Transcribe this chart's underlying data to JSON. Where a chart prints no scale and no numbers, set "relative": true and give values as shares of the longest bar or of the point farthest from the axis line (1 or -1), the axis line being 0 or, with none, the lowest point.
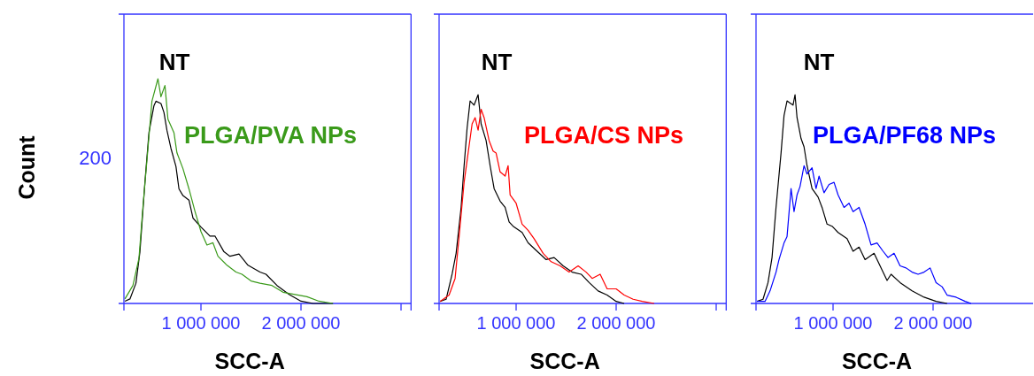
{
  "chart_data": [
    {
      "type": "line",
      "relative": true,
      "ylabel": "Count",
      "xlabel": "SCC-A",
      "xlim": [
        230000,
        3100000
      ],
      "xticks": [
        {
          "value": 1000000,
          "label": "1 000 000"
        },
        {
          "value": 2000000,
          "label": "2 000 000"
        },
        {
          "value": 3000000,
          "label": null
        }
      ],
      "annotations": [
        "200"
      ],
      "series": [
        {
          "name": "NT",
          "color": "#000000",
          "x": [
            240000,
            290000,
            350000,
            390000,
            440000,
            480000,
            530000,
            550000,
            600000,
            630000,
            660000,
            700000,
            750000,
            780000,
            820000,
            880000,
            920000,
            1000000,
            1090000,
            1140000,
            1230000,
            1290000,
            1380000,
            1470000,
            1590000,
            1650000,
            1760000,
            1880000,
            2000000,
            2120000,
            2320000
          ],
          "values": [
            0.01,
            0.02,
            0.09,
            0.23,
            0.54,
            0.76,
            0.88,
            0.9,
            0.89,
            0.85,
            0.77,
            0.69,
            0.61,
            0.51,
            0.48,
            0.46,
            0.38,
            0.34,
            0.3,
            0.3,
            0.23,
            0.21,
            0.22,
            0.17,
            0.14,
            0.13,
            0.08,
            0.04,
            0.01,
            0,
            0
          ]
        },
        {
          "name": "PLGA/PVA NPs",
          "color": "#3a9a1a",
          "x": [
            240000,
            320000,
            380000,
            420000,
            470000,
            510000,
            570000,
            600000,
            640000,
            670000,
            730000,
            760000,
            820000,
            880000,
            940000,
            1000000,
            1060000,
            1120000,
            1170000,
            1260000,
            1350000,
            1410000,
            1500000,
            1590000,
            1710000,
            1820000,
            1940000,
            2060000,
            2180000,
            2320000
          ],
          "values": [
            0.02,
            0.08,
            0.2,
            0.43,
            0.69,
            0.9,
            1,
            0.92,
            0.97,
            0.82,
            0.76,
            0.67,
            0.6,
            0.51,
            0.41,
            0.32,
            0.26,
            0.27,
            0.21,
            0.17,
            0.14,
            0.13,
            0.1,
            0.09,
            0.08,
            0.05,
            0.04,
            0.03,
            0.01,
            0
          ]
        }
      ]
    },
    {
      "type": "line",
      "relative": true,
      "xlabel": "SCC-A",
      "xlim": [
        230000,
        3100000
      ],
      "xticks": [
        {
          "value": 1000000,
          "label": "1 000 000"
        },
        {
          "value": 2000000,
          "label": "2 000 000"
        },
        {
          "value": 3000000,
          "label": null
        }
      ],
      "series": [
        {
          "name": "NT",
          "color": "#000000",
          "x": [
            240000,
            300000,
            360000,
            400000,
            450000,
            480000,
            510000,
            540000,
            580000,
            620000,
            650000,
            700000,
            740000,
            780000,
            840000,
            890000,
            930000,
            970000,
            1060000,
            1120000,
            1210000,
            1300000,
            1380000,
            1470000,
            1560000,
            1650000,
            1730000,
            1820000,
            1910000,
            2000000,
            2080000
          ],
          "values": [
            0.01,
            0.02,
            0.14,
            0.24,
            0.46,
            0.66,
            0.84,
            0.97,
            0.95,
            1,
            0.86,
            0.78,
            0.66,
            0.55,
            0.49,
            0.46,
            0.39,
            0.37,
            0.34,
            0.29,
            0.25,
            0.21,
            0.22,
            0.18,
            0.15,
            0.14,
            0.1,
            0.06,
            0.04,
            0.01,
            0
          ]
        },
        {
          "name": "PLGA/CS NPs",
          "color": "#ff0000",
          "x": [
            240000,
            330000,
            390000,
            430000,
            480000,
            520000,
            560000,
            590000,
            620000,
            650000,
            680000,
            730000,
            770000,
            800000,
            840000,
            890000,
            920000,
            940000,
            1000000,
            1060000,
            1120000,
            1180000,
            1270000,
            1350000,
            1440000,
            1530000,
            1620000,
            1700000,
            1760000,
            1840000,
            1910000,
            2000000,
            2080000,
            2170000,
            2260000,
            2380000
          ],
          "values": [
            0.01,
            0.04,
            0.12,
            0.32,
            0.58,
            0.72,
            0.86,
            0.89,
            0.83,
            0.93,
            0.89,
            0.78,
            0.73,
            0.72,
            0.63,
            0.61,
            0.66,
            0.52,
            0.48,
            0.38,
            0.35,
            0.31,
            0.24,
            0.2,
            0.18,
            0.15,
            0.18,
            0.15,
            0.12,
            0.14,
            0.07,
            0.07,
            0.04,
            0.02,
            0.01,
            0
          ]
        }
      ]
    },
    {
      "type": "line",
      "relative": true,
      "xlabel": "SCC-A",
      "xlim": [
        230000,
        3000000
      ],
      "xticks": [
        {
          "value": 1000000,
          "label": "1 000 000"
        },
        {
          "value": 2000000,
          "label": "2 000 000"
        }
      ],
      "series": [
        {
          "name": "NT",
          "color": "#000000",
          "x": [
            240000,
            300000,
            350000,
            390000,
            430000,
            480000,
            510000,
            540000,
            570000,
            600000,
            620000,
            640000,
            680000,
            710000,
            740000,
            790000,
            850000,
            890000,
            940000,
            990000,
            1050000,
            1140000,
            1200000,
            1260000,
            1320000,
            1410000,
            1470000,
            1540000,
            1580000,
            1670000,
            1790000,
            1910000,
            2030000,
            2140000
          ],
          "values": [
            0.01,
            0.02,
            0.1,
            0.22,
            0.46,
            0.72,
            0.9,
            0.97,
            0.96,
            0.95,
            1,
            0.89,
            0.79,
            0.75,
            0.66,
            0.55,
            0.51,
            0.46,
            0.38,
            0.37,
            0.34,
            0.31,
            0.25,
            0.27,
            0.21,
            0.24,
            0.18,
            0.11,
            0.14,
            0.1,
            0.06,
            0.03,
            0.01,
            0
          ]
        },
        {
          "name": "PLGA/PF68 NPs",
          "color": "#0000ff",
          "x": [
            240000,
            320000,
            370000,
            430000,
            460000,
            510000,
            540000,
            580000,
            610000,
            640000,
            670000,
            710000,
            740000,
            790000,
            830000,
            860000,
            910000,
            960000,
            1010000,
            1050000,
            1110000,
            1160000,
            1200000,
            1260000,
            1320000,
            1380000,
            1440000,
            1500000,
            1550000,
            1610000,
            1670000,
            1730000,
            1790000,
            1850000,
            1910000,
            1970000,
            2030000,
            2090000,
            2140000,
            2230000,
            2320000,
            2380000
          ],
          "values": [
            0.01,
            0.01,
            0.06,
            0.15,
            0.21,
            0.29,
            0.32,
            0.55,
            0.44,
            0.52,
            0.56,
            0.66,
            0.62,
            0.65,
            0.55,
            0.61,
            0.53,
            0.57,
            0.58,
            0.52,
            0.46,
            0.48,
            0.44,
            0.46,
            0.38,
            0.28,
            0.29,
            0.25,
            0.22,
            0.24,
            0.18,
            0.17,
            0.15,
            0.14,
            0.15,
            0.17,
            0.1,
            0.08,
            0.04,
            0.03,
            0.01,
            0
          ]
        }
      ]
    }
  ]
}
